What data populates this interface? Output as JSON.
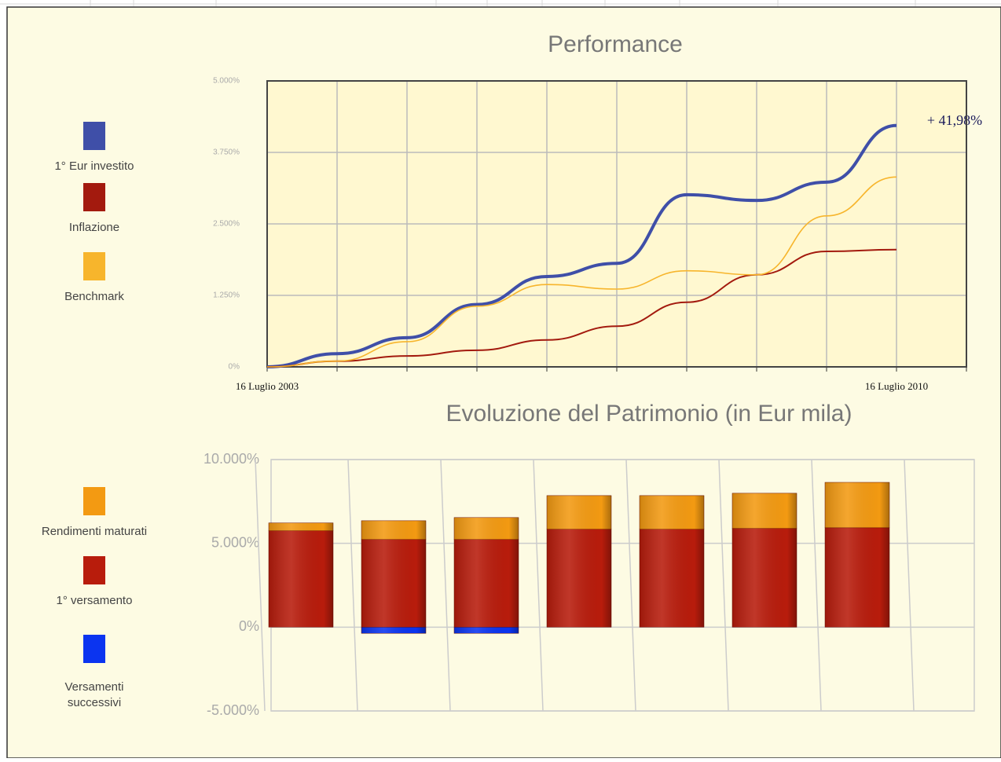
{
  "chart_data": [
    {
      "type": "line",
      "title": "Performance",
      "annotation": "+ 41,98%",
      "categories": [
        "16 Luglio 2003",
        null,
        null,
        null,
        null,
        null,
        null,
        null,
        null,
        "16 Luglio 2010"
      ],
      "ylim": [
        0,
        5000
      ],
      "yticks": [
        {
          "value": 0,
          "label": "0%"
        },
        {
          "value": 1250,
          "label": "1.250%"
        },
        {
          "value": 2500,
          "label": "2.500%"
        },
        {
          "value": 3750,
          "label": "3.750%"
        },
        {
          "value": 5000,
          "label": "5.000%"
        }
      ],
      "grid": true,
      "series": [
        {
          "name": "1° Eur investito",
          "color": "#3f4fa8",
          "values": [
            0,
            230,
            510,
            1090,
            1580,
            1810,
            3010,
            2910,
            3230,
            4220
          ]
        },
        {
          "name": "Inflazione",
          "color": "#a31a0e",
          "values": [
            0,
            100,
            190,
            290,
            470,
            710,
            1130,
            1610,
            2020,
            2050
          ]
        },
        {
          "name": "Benchmark",
          "color": "#f7b52c",
          "values": [
            0,
            100,
            440,
            1060,
            1440,
            1360,
            1680,
            1610,
            2640,
            3320
          ]
        }
      ]
    },
    {
      "type": "bar",
      "stacked": true,
      "title": "Evoluzione del Patrimonio (in Eur mila)",
      "categories": [
        null,
        null,
        null,
        null,
        null,
        null,
        null
      ],
      "ylim": [
        -5000,
        10000
      ],
      "yticks": [
        {
          "value": -5000,
          "label": "-5.000%"
        },
        {
          "value": 0,
          "label": "0%"
        },
        {
          "value": 5000,
          "label": "5.000%"
        },
        {
          "value": 10000,
          "label": "10.000%"
        }
      ],
      "grid": true,
      "series": [
        {
          "name": "1° versamento",
          "color": "#b81c0c",
          "values": [
            5750,
            5230,
            5230,
            5840,
            5840,
            5890,
            5930
          ]
        },
        {
          "name": "Rendimenti maturati",
          "color": "#f39a12",
          "values": [
            470,
            1120,
            1310,
            2010,
            2010,
            2100,
            2710
          ]
        },
        {
          "name": "Versamenti successivi",
          "color": "#0b34f0",
          "values": [
            0,
            -370,
            -370,
            0,
            0,
            0,
            0
          ]
        }
      ]
    }
  ]
}
